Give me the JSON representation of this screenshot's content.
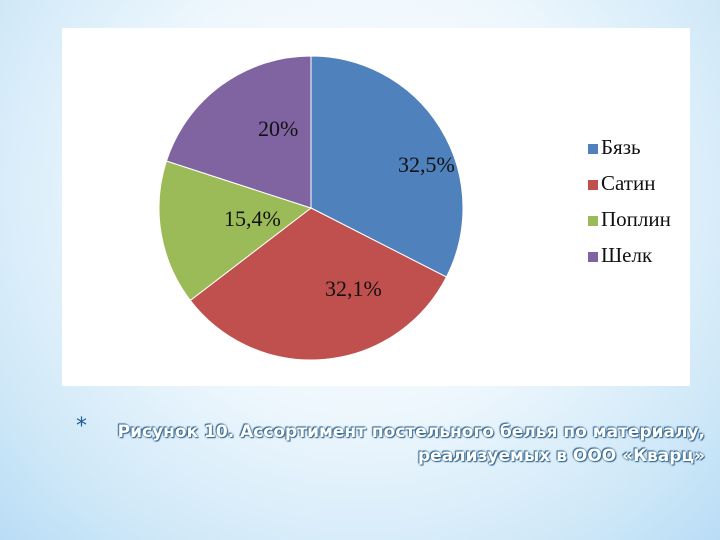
{
  "chart_data": {
    "type": "pie",
    "categories": [
      "Бязь",
      "Сатин",
      "Поплин",
      "Шелк"
    ],
    "values": [
      32.5,
      32.1,
      15.4,
      20
    ],
    "data_labels": [
      "32,5%",
      "32,1%",
      "15,4%",
      "20%"
    ],
    "colors": [
      "#4f81bd",
      "#c0504d",
      "#9bbb59",
      "#8064a2"
    ],
    "legend_position": "right"
  },
  "caption": {
    "bullet": "*",
    "line1": "Рисунок 10. Ассортимент постельного белья по материалу,",
    "line2": "реализуемых в ООО «Кварц»"
  }
}
